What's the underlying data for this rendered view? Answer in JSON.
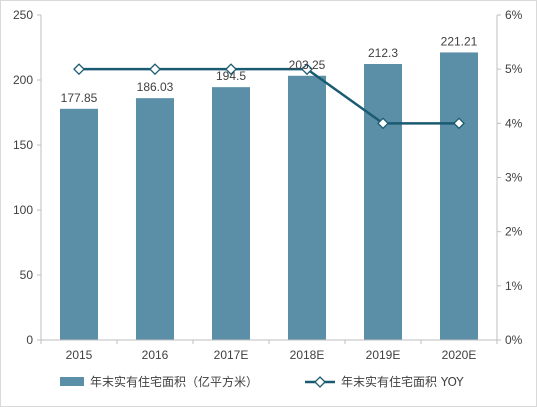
{
  "chart_data": {
    "type": "bar",
    "categories": [
      "2015",
      "2016",
      "2017E",
      "2018E",
      "2019E",
      "2020E"
    ],
    "series": [
      {
        "name": "年末实有住宅面积（亿平方米）",
        "kind": "bar",
        "axis": "left",
        "values": [
          177.85,
          186.03,
          194.5,
          203.25,
          212.3,
          221.21
        ],
        "labels": [
          "177.85",
          "186.03",
          "194.5",
          "203.25",
          "212.3",
          "221.21"
        ],
        "color": "#5b8fa8"
      },
      {
        "name": "年末实有住宅面积 YOY",
        "kind": "line",
        "axis": "right",
        "values": [
          5,
          5,
          5,
          5,
          4,
          4
        ],
        "color": "#1b5b72"
      }
    ],
    "y_left": {
      "ylim": [
        0,
        250
      ],
      "ticks": [
        "0",
        "50",
        "100",
        "150",
        "200",
        "250"
      ]
    },
    "y_right": {
      "ylim": [
        0,
        6
      ],
      "ticks": [
        "0%",
        "1%",
        "2%",
        "3%",
        "4%",
        "5%",
        "6%"
      ]
    },
    "grid": false,
    "legend": "bottom"
  }
}
